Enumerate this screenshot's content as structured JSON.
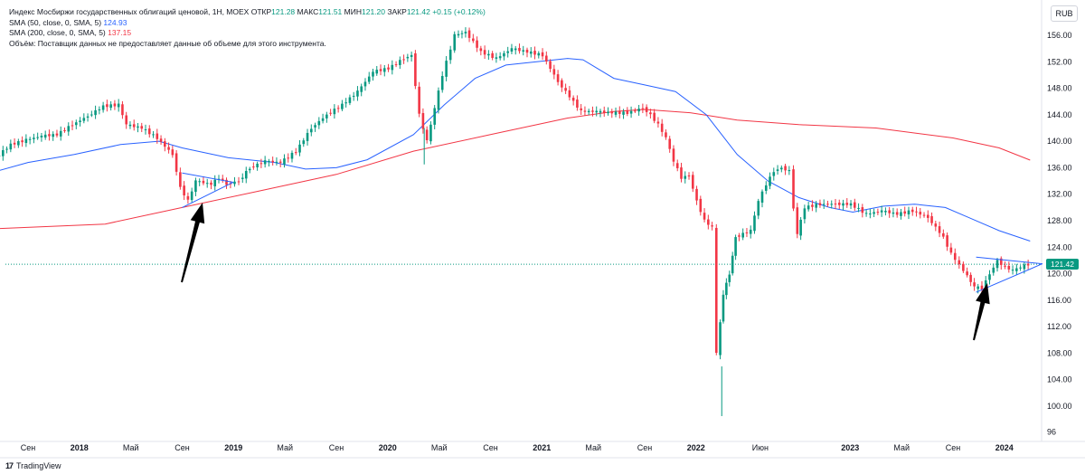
{
  "legend": {
    "title": "Индекс Мосбиржи государственных облигаций ценовой, 1Н, MOEX",
    "open_label": "ОТКР",
    "open_value": "121.28",
    "high_label": "МАКС",
    "high_value": "121.51",
    "low_label": "МИН",
    "low_value": "121.20",
    "close_label": "ЗАКР",
    "close_value": "121.42",
    "change": "+0.15 (+0.12%)",
    "sma50_label": "SMA (50, close, 0, SMA, 5)",
    "sma50_value": "124.93",
    "sma200_label": "SMA (200, close, 0, SMA, 5)",
    "sma200_value": "137.15",
    "volume_note": "Объём: Поставщик данных не предоставляет данные об объеме для этого инструмента."
  },
  "currency": "RUB",
  "last_price_tag": "121.42",
  "brand": {
    "logo": "17",
    "name": "TradingView"
  },
  "colors": {
    "up": "#089981",
    "down": "#f23645",
    "sma50": "#2962ff",
    "sma200": "#f23645",
    "trend": "#2962ff",
    "arrow": "#000000"
  },
  "chart_data": {
    "type": "candlestick",
    "title": "Индекс Мосбиржи государственных облигаций ценовой, 1Н, MOEX",
    "ylim": [
      96,
      158
    ],
    "y_ticks": [
      "100.00",
      "104.00",
      "108.00",
      "112.00",
      "116.00",
      "120.00",
      "124.00",
      "128.00",
      "132.00",
      "136.00",
      "140.00",
      "144.00",
      "148.00",
      "152.00",
      "156.00"
    ],
    "y_tick_values": [
      100,
      104,
      108,
      112,
      116,
      120,
      124,
      128,
      132,
      136,
      140,
      144,
      148,
      152,
      156
    ],
    "bottom_label": "96",
    "x_ticks": [
      {
        "label": "Сен",
        "t": 0.0
      },
      {
        "label": "2018",
        "t": 0.333
      },
      {
        "label": "Май",
        "t": 0.667
      },
      {
        "label": "Сен",
        "t": 1.0
      },
      {
        "label": "2019",
        "t": 1.333
      },
      {
        "label": "Май",
        "t": 1.667
      },
      {
        "label": "Сен",
        "t": 2.0
      },
      {
        "label": "2020",
        "t": 2.333
      },
      {
        "label": "Май",
        "t": 2.667
      },
      {
        "label": "Сен",
        "t": 3.0
      },
      {
        "label": "2021",
        "t": 3.333
      },
      {
        "label": "Май",
        "t": 3.667
      },
      {
        "label": "Сен",
        "t": 4.0
      },
      {
        "label": "2022",
        "t": 4.333
      },
      {
        "label": "Июн",
        "t": 4.75
      },
      {
        "label": "2023",
        "t": 5.333
      },
      {
        "label": "Май",
        "t": 5.667
      },
      {
        "label": "Сен",
        "t": 6.0
      },
      {
        "label": "2024",
        "t": 6.333
      }
    ],
    "x_bold": [
      "2018",
      "2019",
      "2020",
      "2021",
      "2022",
      "2023",
      "2024"
    ],
    "series": [
      {
        "name": "Price (weekly close)",
        "points": [
          [
            -0.2,
            137.5
          ],
          [
            -0.1,
            139.5
          ],
          [
            0.0,
            140.2
          ],
          [
            0.1,
            140.8
          ],
          [
            0.2,
            141.0
          ],
          [
            0.3,
            142.5
          ],
          [
            0.4,
            143.8
          ],
          [
            0.5,
            145.3
          ],
          [
            0.6,
            145.5
          ],
          [
            0.65,
            142.5
          ],
          [
            0.75,
            142.0
          ],
          [
            0.85,
            140.5
          ],
          [
            0.95,
            138.0
          ],
          [
            1.0,
            133.0
          ],
          [
            1.05,
            131.0
          ],
          [
            1.1,
            134.0
          ],
          [
            1.2,
            133.5
          ],
          [
            1.25,
            134.5
          ],
          [
            1.3,
            133.5
          ],
          [
            1.38,
            134.0
          ],
          [
            1.45,
            136.0
          ],
          [
            1.55,
            137.0
          ],
          [
            1.65,
            136.8
          ],
          [
            1.75,
            138.5
          ],
          [
            1.85,
            142.0
          ],
          [
            1.95,
            144.0
          ],
          [
            2.05,
            145.5
          ],
          [
            2.15,
            147.5
          ],
          [
            2.25,
            150.5
          ],
          [
            2.35,
            151.0
          ],
          [
            2.45,
            152.5
          ],
          [
            2.5,
            153.0
          ],
          [
            2.55,
            144.0
          ],
          [
            2.6,
            140.0
          ],
          [
            2.65,
            145.0
          ],
          [
            2.7,
            150.0
          ],
          [
            2.78,
            156.0
          ],
          [
            2.85,
            156.5
          ],
          [
            2.95,
            153.5
          ],
          [
            3.05,
            152.5
          ],
          [
            3.15,
            154.0
          ],
          [
            3.25,
            153.5
          ],
          [
            3.35,
            153.0
          ],
          [
            3.45,
            149.0
          ],
          [
            3.55,
            146.0
          ],
          [
            3.6,
            144.5
          ],
          [
            3.7,
            144.5
          ],
          [
            3.8,
            144.3
          ],
          [
            3.9,
            144.3
          ],
          [
            4.0,
            145.0
          ],
          [
            4.05,
            144.0
          ],
          [
            4.1,
            142.5
          ],
          [
            4.15,
            140.5
          ],
          [
            4.2,
            137.0
          ],
          [
            4.25,
            134.5
          ],
          [
            4.3,
            134.8
          ],
          [
            4.35,
            131.0
          ],
          [
            4.4,
            128.0
          ],
          [
            4.45,
            127.0
          ],
          [
            4.48,
            108.0
          ],
          [
            4.52,
            117.0
          ],
          [
            4.56,
            120.0
          ],
          [
            4.6,
            125.5
          ],
          [
            4.65,
            126.0
          ],
          [
            4.7,
            126.5
          ],
          [
            4.75,
            131.0
          ],
          [
            4.8,
            133.5
          ],
          [
            4.85,
            135.5
          ],
          [
            4.9,
            136.0
          ],
          [
            4.95,
            135.5
          ],
          [
            4.98,
            130.0
          ],
          [
            5.0,
            126.0
          ],
          [
            5.05,
            130.0
          ],
          [
            5.15,
            130.5
          ],
          [
            5.25,
            130.5
          ],
          [
            5.35,
            130.5
          ],
          [
            5.45,
            129.0
          ],
          [
            5.55,
            129.5
          ],
          [
            5.65,
            129.0
          ],
          [
            5.75,
            129.5
          ],
          [
            5.85,
            128.5
          ],
          [
            5.95,
            125.5
          ],
          [
            6.0,
            123.0
          ],
          [
            6.08,
            120.5
          ],
          [
            6.15,
            118.0
          ],
          [
            6.2,
            117.8
          ],
          [
            6.25,
            120.0
          ],
          [
            6.3,
            122.0
          ],
          [
            6.35,
            121.0
          ],
          [
            6.4,
            120.5
          ],
          [
            6.45,
            121.0
          ],
          [
            6.5,
            121.42
          ]
        ]
      },
      {
        "name": "SMA (50, close, 0, SMA, 5)",
        "points": [
          [
            -0.2,
            135.5
          ],
          [
            0.0,
            136.8
          ],
          [
            0.3,
            138.0
          ],
          [
            0.6,
            139.5
          ],
          [
            0.85,
            140.0
          ],
          [
            1.0,
            139.0
          ],
          [
            1.3,
            137.5
          ],
          [
            1.6,
            136.8
          ],
          [
            1.8,
            135.8
          ],
          [
            2.0,
            136.0
          ],
          [
            2.2,
            137.2
          ],
          [
            2.5,
            141.0
          ],
          [
            2.7,
            145.5
          ],
          [
            2.9,
            149.5
          ],
          [
            3.1,
            151.5
          ],
          [
            3.3,
            152.0
          ],
          [
            3.5,
            152.5
          ],
          [
            3.6,
            152.3
          ],
          [
            3.8,
            149.5
          ],
          [
            4.0,
            148.5
          ],
          [
            4.2,
            147.5
          ],
          [
            4.4,
            144.0
          ],
          [
            4.6,
            138.0
          ],
          [
            4.8,
            134.0
          ],
          [
            5.0,
            131.5
          ],
          [
            5.2,
            130.0
          ],
          [
            5.35,
            129.3
          ],
          [
            5.55,
            130.2
          ],
          [
            5.75,
            130.5
          ],
          [
            5.95,
            130.0
          ],
          [
            6.1,
            128.5
          ],
          [
            6.3,
            126.5
          ],
          [
            6.5,
            124.93
          ]
        ]
      },
      {
        "name": "SMA (200, close, 0, SMA, 5)",
        "points": [
          [
            -0.2,
            126.8
          ],
          [
            0.5,
            127.5
          ],
          [
            1.0,
            130.0
          ],
          [
            1.5,
            132.5
          ],
          [
            2.0,
            135.0
          ],
          [
            2.5,
            138.5
          ],
          [
            3.0,
            141.0
          ],
          [
            3.5,
            143.5
          ],
          [
            3.8,
            144.5
          ],
          [
            4.0,
            144.8
          ],
          [
            4.3,
            144.3
          ],
          [
            4.6,
            143.2
          ],
          [
            5.0,
            142.5
          ],
          [
            5.5,
            142.0
          ],
          [
            6.0,
            140.5
          ],
          [
            6.3,
            139.0
          ],
          [
            6.5,
            137.15
          ]
        ]
      },
      {
        "name": "Trendline upper 2018",
        "points": [
          [
            1.0,
            135.2
          ],
          [
            1.33,
            133.8
          ]
        ]
      },
      {
        "name": "Trendline lower 2018",
        "points": [
          [
            1.0,
            130.0
          ],
          [
            1.33,
            133.8
          ]
        ]
      },
      {
        "name": "Trendline upper 2023",
        "points": [
          [
            6.15,
            122.5
          ],
          [
            6.58,
            121.5
          ]
        ]
      },
      {
        "name": "Trendline lower 2023",
        "points": [
          [
            6.15,
            117.2
          ],
          [
            6.58,
            121.5
          ]
        ]
      }
    ],
    "last_value": 121.42,
    "annotations": [
      {
        "type": "arrow",
        "description": "black arrow pointing up to 2018 triangle"
      },
      {
        "type": "arrow",
        "description": "black arrow pointing up to 2023 triangle"
      }
    ]
  }
}
